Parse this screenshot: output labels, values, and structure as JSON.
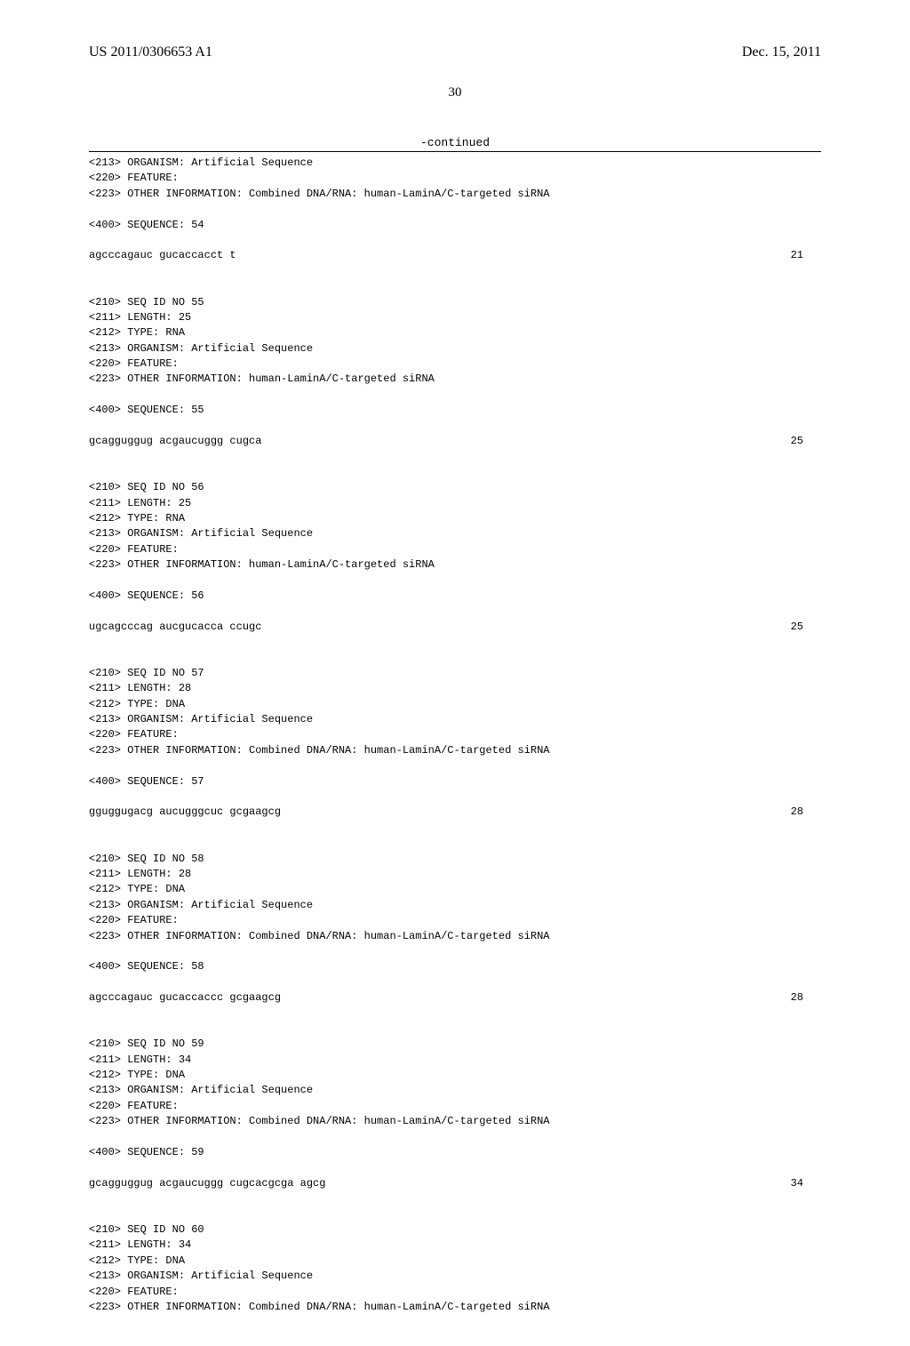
{
  "header": {
    "pub_number": "US 2011/0306653 A1",
    "pub_date": "Dec. 15, 2011"
  },
  "page_number": "30",
  "continued_label": "-continued",
  "entries": [
    {
      "pre_lines": [
        "<213> ORGANISM: Artificial Sequence",
        "<220> FEATURE:",
        "<223> OTHER INFORMATION: Combined DNA/RNA: human-LaminA/C-targeted siRNA"
      ],
      "seq_label": "<400> SEQUENCE: 54",
      "sequence": "agcccagauc gucaccacct t",
      "length_num": "21"
    },
    {
      "pre_lines": [
        "<210> SEQ ID NO 55",
        "<211> LENGTH: 25",
        "<212> TYPE: RNA",
        "<213> ORGANISM: Artificial Sequence",
        "<220> FEATURE:",
        "<223> OTHER INFORMATION: human-LaminA/C-targeted siRNA"
      ],
      "seq_label": "<400> SEQUENCE: 55",
      "sequence": "gcagguggug acgaucuggg cugca",
      "length_num": "25"
    },
    {
      "pre_lines": [
        "<210> SEQ ID NO 56",
        "<211> LENGTH: 25",
        "<212> TYPE: RNA",
        "<213> ORGANISM: Artificial Sequence",
        "<220> FEATURE:",
        "<223> OTHER INFORMATION: human-LaminA/C-targeted siRNA"
      ],
      "seq_label": "<400> SEQUENCE: 56",
      "sequence": "ugcagcccag aucgucacca ccugc",
      "length_num": "25"
    },
    {
      "pre_lines": [
        "<210> SEQ ID NO 57",
        "<211> LENGTH: 28",
        "<212> TYPE: DNA",
        "<213> ORGANISM: Artificial Sequence",
        "<220> FEATURE:",
        "<223> OTHER INFORMATION: Combined DNA/RNA: human-LaminA/C-targeted siRNA"
      ],
      "seq_label": "<400> SEQUENCE: 57",
      "sequence": "gguggugacg aucugggcuc gcgaagcg",
      "length_num": "28"
    },
    {
      "pre_lines": [
        "<210> SEQ ID NO 58",
        "<211> LENGTH: 28",
        "<212> TYPE: DNA",
        "<213> ORGANISM: Artificial Sequence",
        "<220> FEATURE:",
        "<223> OTHER INFORMATION: Combined DNA/RNA: human-LaminA/C-targeted siRNA"
      ],
      "seq_label": "<400> SEQUENCE: 58",
      "sequence": "agcccagauc gucaccaccc gcgaagcg",
      "length_num": "28"
    },
    {
      "pre_lines": [
        "<210> SEQ ID NO 59",
        "<211> LENGTH: 34",
        "<212> TYPE: DNA",
        "<213> ORGANISM: Artificial Sequence",
        "<220> FEATURE:",
        "<223> OTHER INFORMATION: Combined DNA/RNA: human-LaminA/C-targeted siRNA"
      ],
      "seq_label": "<400> SEQUENCE: 59",
      "sequence": "gcagguggug acgaucuggg cugcacgcga agcg",
      "length_num": "34"
    },
    {
      "pre_lines": [
        "<210> SEQ ID NO 60",
        "<211> LENGTH: 34",
        "<212> TYPE: DNA",
        "<213> ORGANISM: Artificial Sequence",
        "<220> FEATURE:",
        "<223> OTHER INFORMATION: Combined DNA/RNA: human-LaminA/C-targeted siRNA"
      ],
      "seq_label": "",
      "sequence": "",
      "length_num": ""
    }
  ]
}
